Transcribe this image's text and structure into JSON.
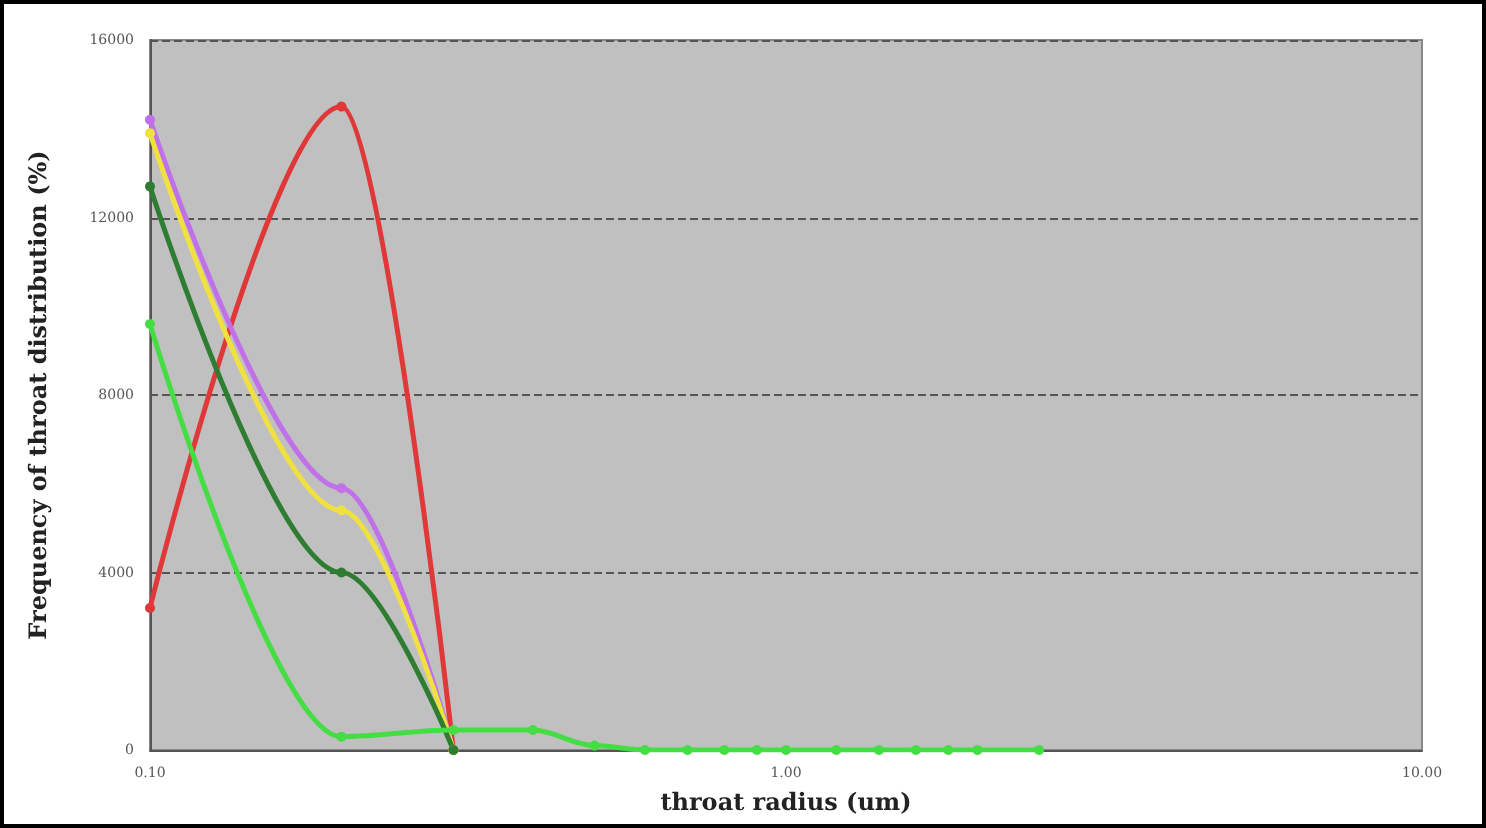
{
  "chart_data": {
    "type": "line",
    "xlabel": "throat radius (um)",
    "ylabel": "Frequency of throat distribution (%)",
    "x": [
      0.1,
      0.2,
      0.3,
      0.4,
      0.5,
      0.6,
      0.7,
      0.8,
      0.9,
      1.0,
      1.2,
      1.4,
      1.6,
      1.8,
      2.0,
      2.5
    ],
    "series": [
      {
        "color": "#e03838",
        "x": [
          0.1,
          0.2,
          0.3
        ],
        "values": [
          3200,
          14500,
          0
        ]
      },
      {
        "color": "#c070e8",
        "x": [
          0.1,
          0.2,
          0.3
        ],
        "values": [
          14200,
          5900,
          0
        ]
      },
      {
        "color": "#f0e040",
        "x": [
          0.1,
          0.2,
          0.3
        ],
        "values": [
          13900,
          5400,
          0
        ]
      },
      {
        "color": "#2e7d32",
        "x": [
          0.1,
          0.2,
          0.3
        ],
        "values": [
          12700,
          4000,
          0
        ]
      },
      {
        "color": "#44dd44",
        "values": [
          9600,
          300,
          450,
          450,
          100,
          0,
          0,
          0,
          0,
          0,
          0,
          0,
          0,
          0,
          0,
          0
        ]
      }
    ],
    "xlim": [
      0.1,
      10
    ],
    "xticks": [
      {
        "value": 0.1,
        "label": "0.10"
      },
      {
        "value": 1,
        "label": "1.00"
      },
      {
        "value": 10,
        "label": "10.00"
      }
    ],
    "ylim": [
      0,
      16000
    ],
    "yticks": [
      0,
      4000,
      8000,
      12000,
      16000
    ],
    "log": "x",
    "grid": "y",
    "marker": "circle",
    "line_style": "solid"
  }
}
